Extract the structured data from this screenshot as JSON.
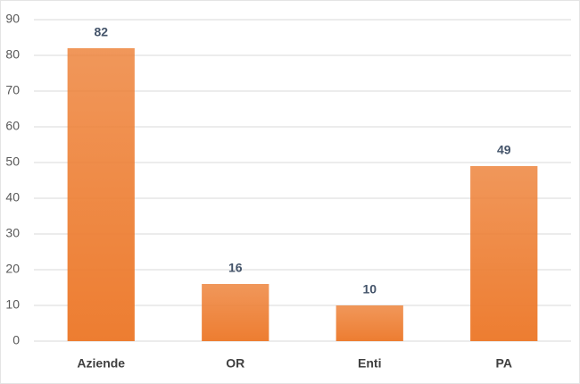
{
  "chart_data": {
    "type": "bar",
    "categories": [
      "Aziende",
      "OR",
      "Enti",
      "PA"
    ],
    "values": [
      82,
      16,
      10,
      49
    ],
    "color": "#ed7d31",
    "ylim": [
      0,
      90
    ],
    "yticks": [
      0,
      10,
      20,
      30,
      40,
      50,
      60,
      70,
      80,
      90
    ],
    "grid": true
  }
}
